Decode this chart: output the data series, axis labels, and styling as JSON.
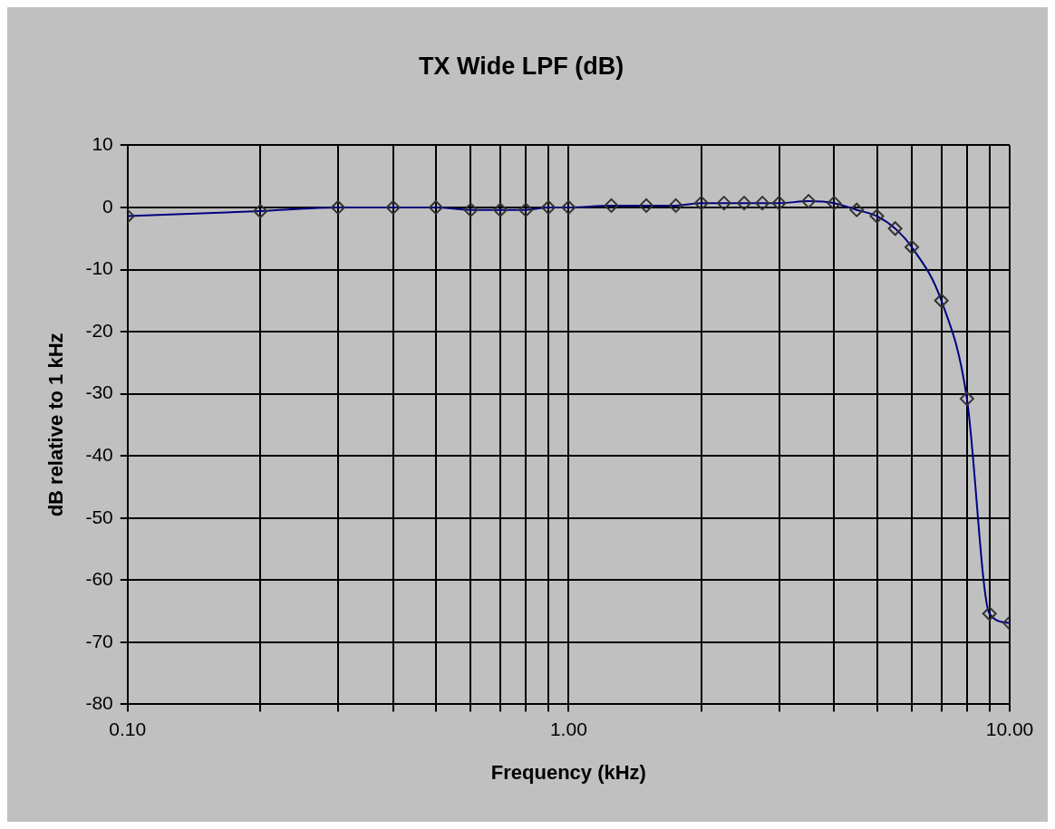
{
  "chart_data": {
    "type": "line",
    "title": "TX Wide LPF (dB)",
    "xlabel": "Frequency (kHz)",
    "ylabel": "dB relative to 1 kHz",
    "log": "x",
    "grid": true,
    "legend": false,
    "marker": "diamond",
    "line_style": "solid",
    "x": [
      0.1,
      0.2,
      0.3,
      0.4,
      0.5,
      0.6,
      0.7,
      0.8,
      0.9,
      1.0,
      1.25,
      1.5,
      1.75,
      2.0,
      2.25,
      2.5,
      2.75,
      3.0,
      3.5,
      4.0,
      4.5,
      5.0,
      5.5,
      6.0,
      7.0,
      8.0,
      9.0,
      10.0
    ],
    "series": [
      {
        "color": "#000080",
        "values": [
          -1.4,
          -0.6,
          0,
          0,
          0,
          -0.4,
          -0.4,
          -0.4,
          0,
          0,
          0.3,
          0.3,
          0.3,
          0.7,
          0.7,
          0.7,
          0.7,
          0.7,
          1.0,
          0.7,
          -0.4,
          -1.4,
          -3.4,
          -6.4,
          -15.0,
          -30.8,
          -65.4,
          -66.9
        ]
      }
    ],
    "xlim": [
      0.1,
      10
    ],
    "ylim": [
      -80,
      10
    ],
    "xticks": [
      {
        "value": 0.1,
        "label": "0.10"
      },
      {
        "value": 0.2,
        "label": null
      },
      {
        "value": 0.3,
        "label": null
      },
      {
        "value": 0.4,
        "label": null
      },
      {
        "value": 0.5,
        "label": null
      },
      {
        "value": 0.6,
        "label": null
      },
      {
        "value": 0.7,
        "label": null
      },
      {
        "value": 0.8,
        "label": null
      },
      {
        "value": 0.9,
        "label": null
      },
      {
        "value": 1,
        "label": "1.00"
      },
      {
        "value": 2,
        "label": null
      },
      {
        "value": 3,
        "label": null
      },
      {
        "value": 4,
        "label": null
      },
      {
        "value": 5,
        "label": null
      },
      {
        "value": 6,
        "label": null
      },
      {
        "value": 7,
        "label": null
      },
      {
        "value": 8,
        "label": null
      },
      {
        "value": 9,
        "label": null
      },
      {
        "value": 10,
        "label": "10.00"
      }
    ],
    "yticks": [
      -80,
      -70,
      -60,
      -50,
      -40,
      -30,
      -20,
      -10,
      0,
      10
    ]
  }
}
